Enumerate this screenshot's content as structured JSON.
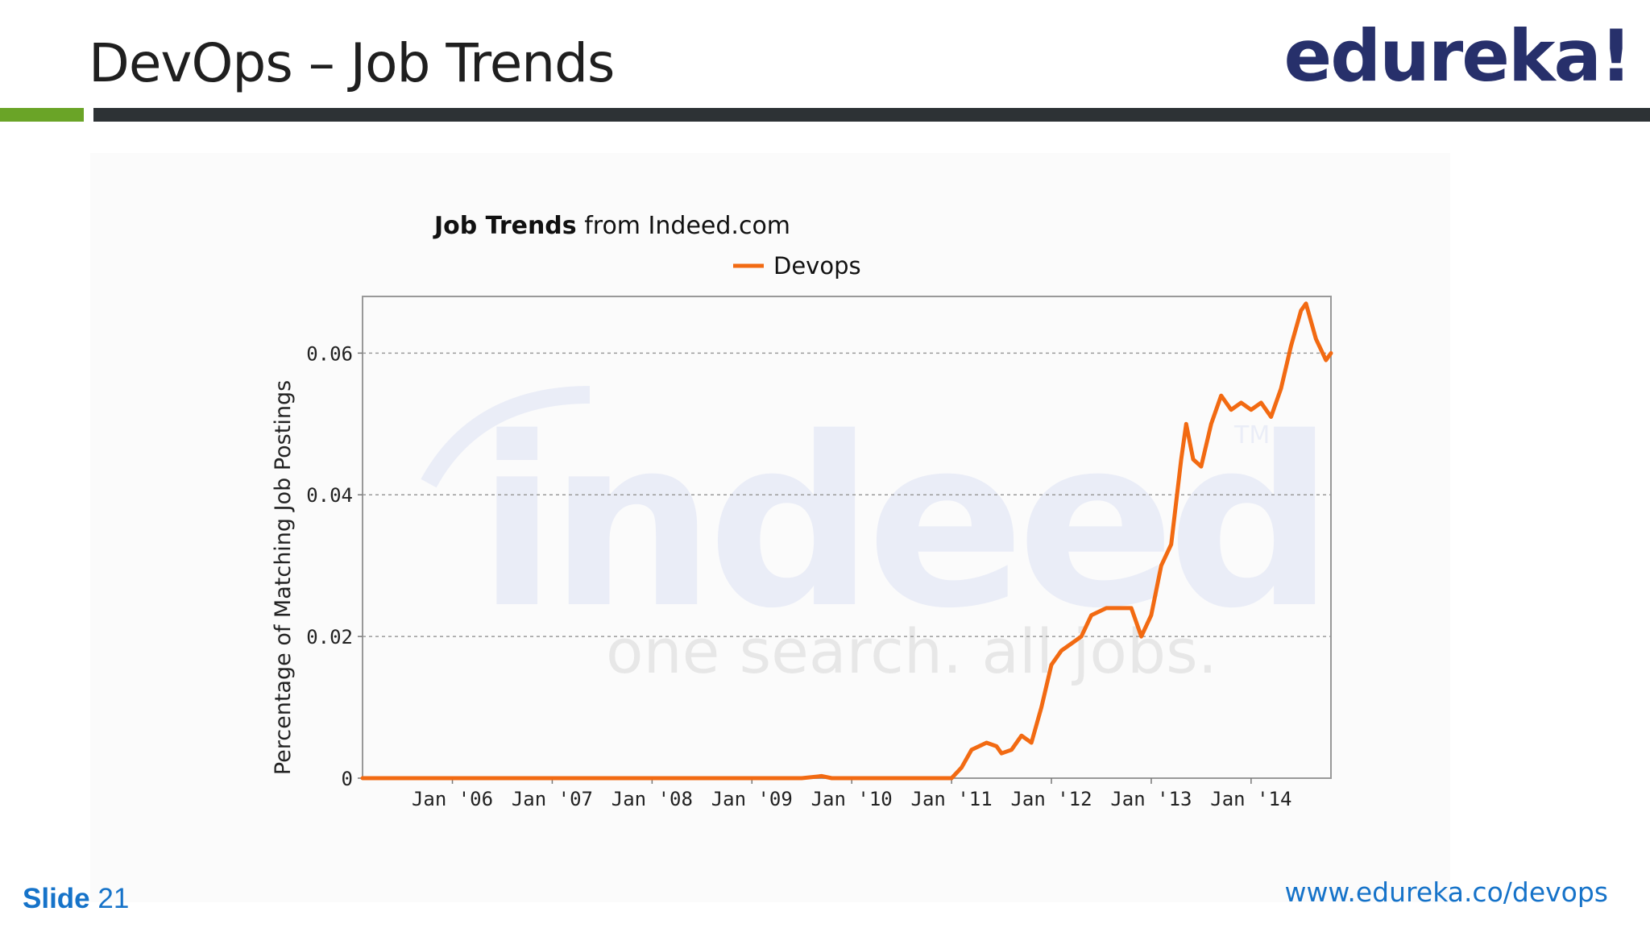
{
  "slide": {
    "title": "DevOps – Job Trends",
    "logo_text": "edureka!",
    "slide_word": "Slide",
    "slide_number": "21",
    "footer_url": "www.edureka.co/devops"
  },
  "colors": {
    "accent_green": "#6aa427",
    "header_bar": "#2d3235",
    "logo": "#27306b",
    "footer_blue": "#1673c9",
    "series": "#f26a12"
  },
  "chart_data": {
    "type": "line",
    "title_bold": "Job Trends",
    "title_rest": "from Indeed.com",
    "ylabel": "Percentage of Matching Job Postings",
    "xlabel": "",
    "watermark_brand": "indeed",
    "watermark_tagline": "one search. all jobs.",
    "watermark_mark": "TM",
    "x_tick_labels": [
      "Jan '06",
      "Jan '07",
      "Jan '08",
      "Jan '09",
      "Jan '10",
      "Jan '11",
      "Jan '12",
      "Jan '13",
      "Jan '14"
    ],
    "x_tick_years": [
      2006,
      2007,
      2008,
      2009,
      2010,
      2011,
      2012,
      2013,
      2014
    ],
    "xlim": [
      2005.1,
      2014.8
    ],
    "y_ticks": [
      0,
      0.02,
      0.04,
      0.06
    ],
    "y_tick_labels": [
      "0",
      "0.02",
      "0.04",
      "0.06"
    ],
    "ylim": [
      0,
      0.068
    ],
    "grid": "horizontal dashed",
    "legend_position": "top-center",
    "series": [
      {
        "name": "Devops",
        "points": [
          [
            2005.1,
            0.0
          ],
          [
            2009.5,
            0.0
          ],
          [
            2009.7,
            0.0003
          ],
          [
            2009.8,
            0.0
          ],
          [
            2011.0,
            0.0
          ],
          [
            2011.1,
            0.0015
          ],
          [
            2011.2,
            0.004
          ],
          [
            2011.35,
            0.005
          ],
          [
            2011.45,
            0.0045
          ],
          [
            2011.5,
            0.0035
          ],
          [
            2011.6,
            0.004
          ],
          [
            2011.7,
            0.006
          ],
          [
            2011.8,
            0.005
          ],
          [
            2011.9,
            0.01
          ],
          [
            2012.0,
            0.016
          ],
          [
            2012.1,
            0.018
          ],
          [
            2012.2,
            0.019
          ],
          [
            2012.3,
            0.02
          ],
          [
            2012.4,
            0.023
          ],
          [
            2012.55,
            0.024
          ],
          [
            2012.7,
            0.024
          ],
          [
            2012.8,
            0.024
          ],
          [
            2012.9,
            0.02
          ],
          [
            2013.0,
            0.023
          ],
          [
            2013.1,
            0.03
          ],
          [
            2013.2,
            0.033
          ],
          [
            2013.3,
            0.045
          ],
          [
            2013.35,
            0.05
          ],
          [
            2013.42,
            0.045
          ],
          [
            2013.5,
            0.044
          ],
          [
            2013.6,
            0.05
          ],
          [
            2013.7,
            0.054
          ],
          [
            2013.8,
            0.052
          ],
          [
            2013.9,
            0.053
          ],
          [
            2014.0,
            0.052
          ],
          [
            2014.1,
            0.053
          ],
          [
            2014.2,
            0.051
          ],
          [
            2014.3,
            0.055
          ],
          [
            2014.4,
            0.061
          ],
          [
            2014.5,
            0.066
          ],
          [
            2014.55,
            0.067
          ],
          [
            2014.65,
            0.062
          ],
          [
            2014.75,
            0.059
          ],
          [
            2014.8,
            0.06
          ]
        ]
      }
    ]
  }
}
